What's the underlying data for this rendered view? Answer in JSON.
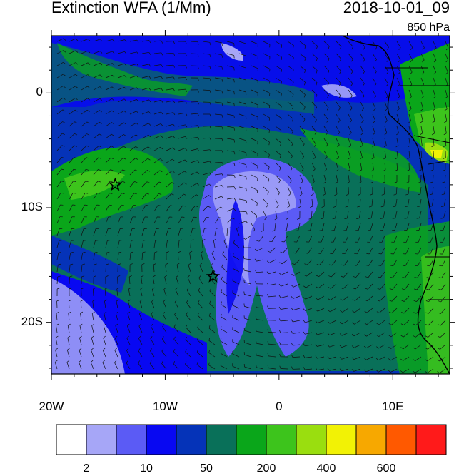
{
  "header": {
    "title": "Extinction WFA (1/Mm)",
    "datetime": "2018-10-01_09",
    "level": "850 hPa"
  },
  "map": {
    "lat_labels": [
      "0",
      "10S",
      "20S"
    ],
    "lat_values": [
      0,
      -10,
      -20
    ],
    "lon_labels": [
      "20W",
      "10W",
      "0",
      "10E"
    ],
    "lon_values": [
      -20,
      -10,
      0,
      10
    ],
    "extent": {
      "lon_min": -20,
      "lon_max": 15,
      "lat_min": -24.5,
      "lat_max": 5
    },
    "stars": [
      {
        "lon": -14.4,
        "lat": -8.0
      },
      {
        "lon": -5.8,
        "lat": -16.0
      }
    ]
  },
  "colorbar": {
    "colors": [
      "#ffffff",
      "#a6a6f7",
      "#5b5bf5",
      "#0808f2",
      "#0533b8",
      "#097059",
      "#0aa61a",
      "#3dc41c",
      "#9ade0f",
      "#f2f205",
      "#f7a800",
      "#ff5900",
      "#ff1a1a"
    ],
    "labels": [
      "2",
      "10",
      "50",
      "200",
      "400",
      "600"
    ]
  }
}
